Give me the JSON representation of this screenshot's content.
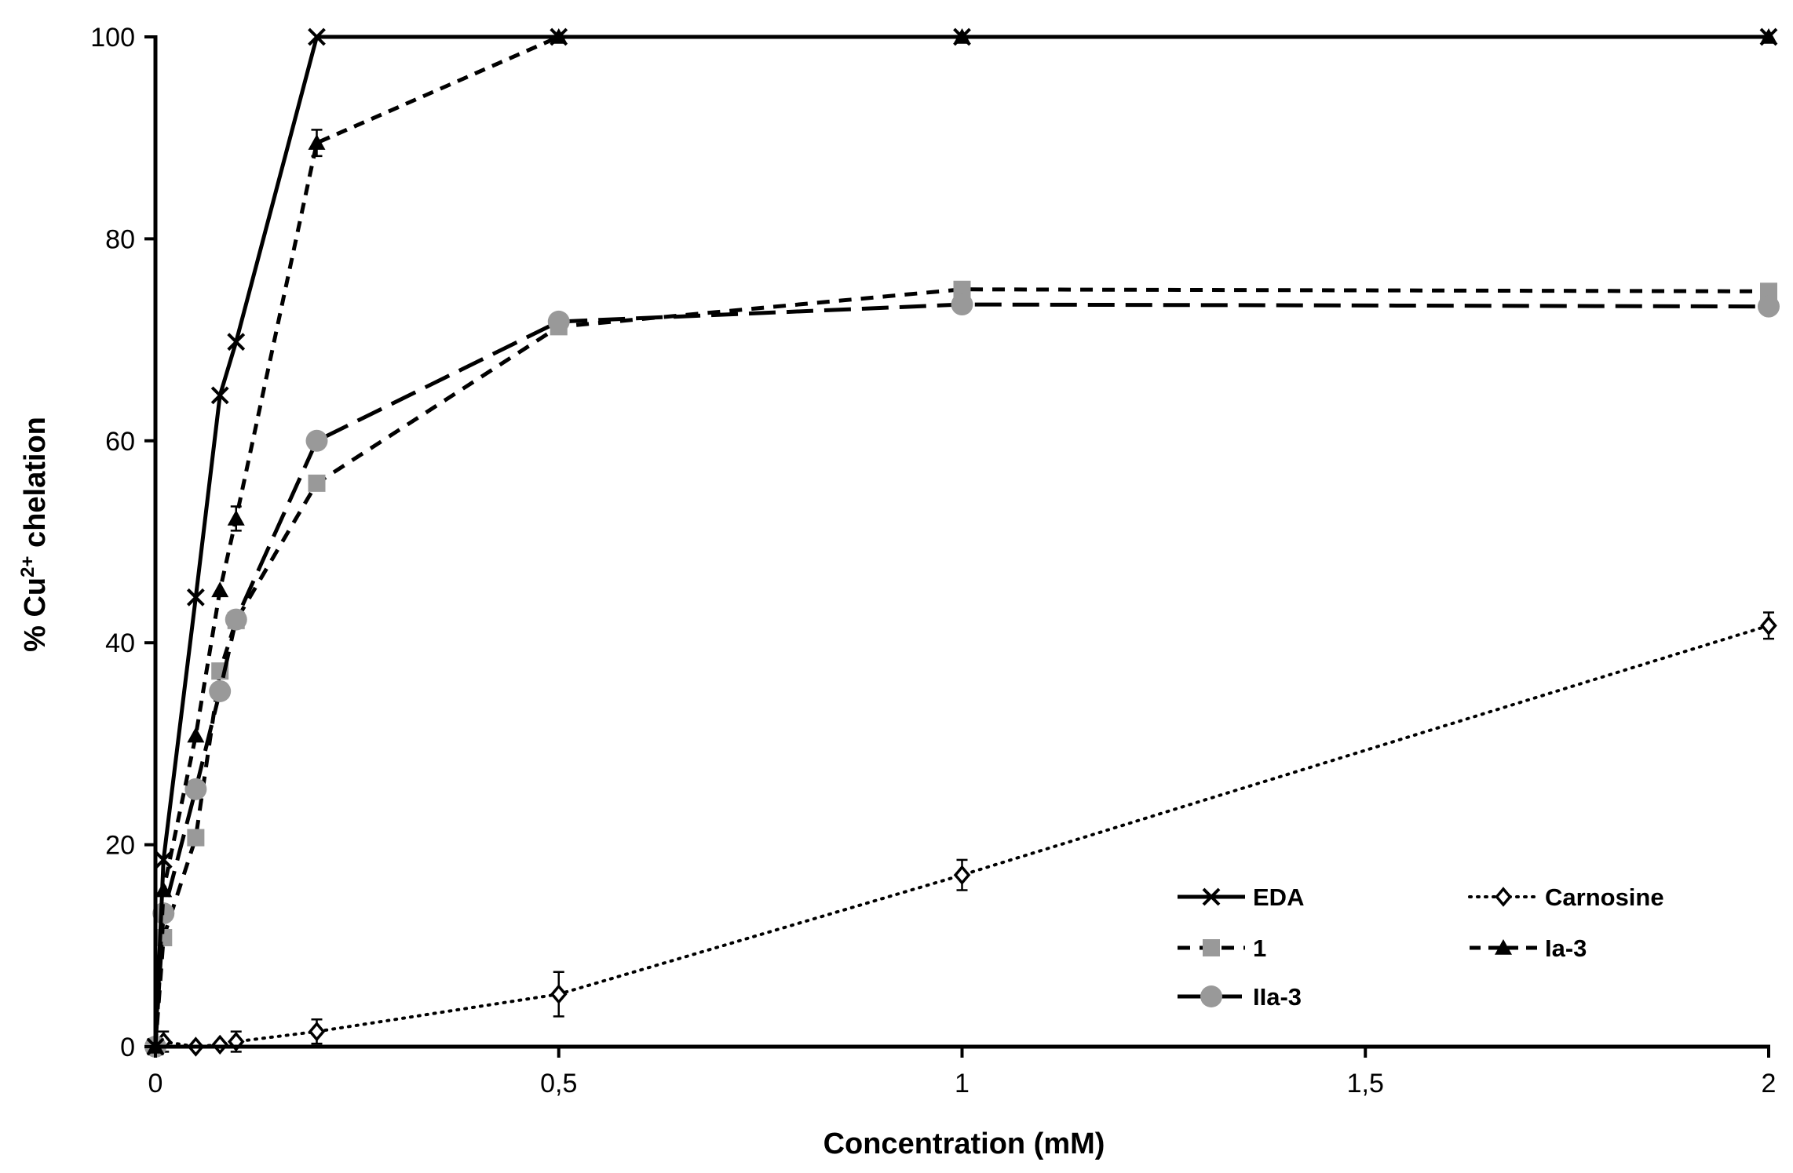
{
  "chart_data": {
    "type": "line",
    "title": "",
    "xlabel": "Concentration (mM)",
    "ylabel_prefix": "% Cu",
    "ylabel_sup": "2+",
    "ylabel_suffix": " chelation",
    "xlim": [
      0,
      2
    ],
    "ylim": [
      0,
      100
    ],
    "x_ticks": [
      0,
      0.5,
      1,
      1.5,
      2
    ],
    "x_tick_labels": [
      "0",
      "0,5",
      "1",
      "1,5",
      "2"
    ],
    "y_ticks": [
      0,
      20,
      40,
      60,
      80,
      100
    ],
    "y_tick_labels": [
      "0",
      "20",
      "40",
      "60",
      "80",
      "100"
    ],
    "legend_position": "bottom-right",
    "series": [
      {
        "name": "EDA",
        "color": "#000000",
        "marker": "x",
        "line": "solid",
        "x": [
          0,
          0.01,
          0.05,
          0.08,
          0.1,
          0.2,
          0.5,
          1,
          2
        ],
        "y": [
          0,
          18.5,
          44.5,
          64.5,
          69.8,
          100,
          100,
          100,
          100
        ]
      },
      {
        "name": "Carnosine",
        "color": "#000000",
        "marker": "diamond-open",
        "line": "dotted",
        "x": [
          0,
          0.01,
          0.05,
          0.08,
          0.1,
          0.2,
          0.5,
          1,
          2
        ],
        "y": [
          0,
          0.5,
          0,
          0.2,
          0.5,
          1.5,
          5.2,
          17,
          41.7
        ],
        "err": [
          0,
          1,
          0,
          0,
          1,
          1.2,
          2.2,
          1.5,
          1.3
        ]
      },
      {
        "name": "1",
        "color": "#999999",
        "marker": "square",
        "line": "short-dash",
        "x": [
          0,
          0.01,
          0.05,
          0.08,
          0.1,
          0.2,
          0.5,
          1,
          2
        ],
        "y": [
          0,
          10.8,
          20.7,
          37.2,
          42.2,
          55.8,
          71.3,
          75.0,
          74.8
        ]
      },
      {
        "name": "Ia-3",
        "color": "#000000",
        "marker": "triangle",
        "line": "dash",
        "x": [
          0,
          0.01,
          0.05,
          0.08,
          0.1,
          0.2,
          0.5,
          1,
          2
        ],
        "y": [
          0,
          15.5,
          30.8,
          45.2,
          52.3,
          89.5,
          100,
          100,
          100
        ],
        "err": [
          0,
          0,
          0,
          0,
          1.2,
          1.3,
          0,
          0,
          0
        ]
      },
      {
        "name": "IIa-3",
        "color": "#999999",
        "marker": "circle",
        "line": "long-dash",
        "x": [
          0,
          0.01,
          0.05,
          0.08,
          0.1,
          0.2,
          0.5,
          1,
          2
        ],
        "y": [
          0,
          13.2,
          25.5,
          35.2,
          42.3,
          60.0,
          71.8,
          73.5,
          73.3
        ]
      }
    ]
  }
}
